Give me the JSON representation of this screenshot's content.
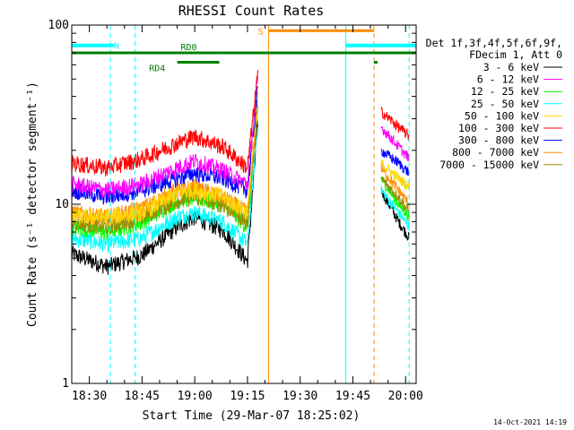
{
  "chart_data": {
    "type": "line",
    "title": "RHESSI Count Rates",
    "xlabel": "Start Time (29-Mar-07 18:25:02)",
    "ylabel": "Count Rate (s⁻¹ detector segment⁻¹)",
    "y_scale": "log",
    "ylim": [
      1,
      100
    ],
    "xlim": [
      "18:25",
      "20:03"
    ],
    "x_ticks": [
      "18:30",
      "18:45",
      "19:00",
      "19:15",
      "19:30",
      "19:45",
      "20:00"
    ],
    "y_ticks": [
      "1",
      "10",
      "100"
    ],
    "legend": {
      "placement": "outside-right",
      "header": [
        "Det 1f,3f,4f,5f,6f,9f,",
        "FDecim 1, Att 0"
      ]
    },
    "grid": false,
    "data_gap": [
      "19:22",
      "19:53"
    ],
    "series": [
      {
        "name": "3 - 6 keV",
        "color": "#000000",
        "x": [
          "18:25",
          "18:35",
          "18:45",
          "18:55",
          "19:00",
          "19:08",
          "19:15",
          "19:18",
          "19:53",
          "19:58",
          "20:01"
        ],
        "values": [
          5.3,
          4.5,
          5.2,
          7.5,
          8.5,
          7.2,
          4.8,
          30,
          12,
          8,
          6.5
        ]
      },
      {
        "name": "6 - 12 keV",
        "color": "#ff00ff",
        "x": [
          "18:25",
          "18:35",
          "18:45",
          "18:55",
          "19:00",
          "19:08",
          "19:15",
          "19:18",
          "19:53",
          "19:58",
          "20:01"
        ],
        "values": [
          13,
          12,
          13,
          16,
          17.5,
          15.5,
          13,
          52,
          27,
          21,
          18
        ]
      },
      {
        "name": "12 - 25 keV",
        "color": "#00ff00",
        "x": [
          "18:25",
          "18:35",
          "18:45",
          "18:55",
          "19:00",
          "19:08",
          "19:15",
          "19:18",
          "19:53",
          "19:58",
          "20:01"
        ],
        "values": [
          7.5,
          7,
          8,
          10.5,
          11,
          10,
          7.5,
          35,
          14,
          10,
          8.5
        ]
      },
      {
        "name": "25 - 50 keV",
        "color": "#00ffff",
        "x": [
          "18:25",
          "18:35",
          "18:45",
          "18:55",
          "19:00",
          "19:08",
          "19:15",
          "19:18",
          "19:53",
          "19:58",
          "20:01"
        ],
        "values": [
          6.5,
          6,
          6.5,
          8.5,
          9,
          8,
          6,
          30,
          12,
          9,
          7.5
        ]
      },
      {
        "name": "50 - 100 keV",
        "color": "#ffd700",
        "x": [
          "18:25",
          "18:35",
          "18:45",
          "18:55",
          "19:00",
          "19:08",
          "19:15",
          "19:18",
          "19:53",
          "19:58",
          "20:01"
        ],
        "values": [
          8.5,
          8.5,
          9,
          11.5,
          12,
          11,
          9,
          40,
          17,
          14,
          12.5
        ]
      },
      {
        "name": "100 - 300 keV",
        "color": "#ff0000",
        "x": [
          "18:25",
          "18:35",
          "18:45",
          "18:55",
          "19:00",
          "19:08",
          "19:15",
          "19:18",
          "19:53",
          "19:58",
          "20:01"
        ],
        "values": [
          17,
          16,
          18,
          22,
          24,
          21,
          16,
          55,
          33,
          27,
          24
        ]
      },
      {
        "name": "300 - 800 keV",
        "color": "#0000ff",
        "x": [
          "18:25",
          "18:35",
          "18:45",
          "18:55",
          "19:00",
          "19:08",
          "19:15",
          "19:18",
          "19:53",
          "19:58",
          "20:01"
        ],
        "values": [
          12,
          11,
          12,
          14,
          15,
          14,
          12,
          45,
          20,
          17,
          15
        ]
      },
      {
        "name": "800 - 7000 keV",
        "color": "#ff8c00",
        "x": [
          "18:25",
          "18:35",
          "18:45",
          "18:55",
          "19:00",
          "19:08",
          "19:15",
          "19:18",
          "19:53",
          "19:58",
          "20:01"
        ],
        "values": [
          9,
          8.5,
          9.5,
          12,
          12.5,
          11,
          9,
          38,
          16,
          12,
          10
        ]
      },
      {
        "name": "7000 - 15000 keV",
        "color": "#9a8a00",
        "x": [
          "18:25",
          "18:35",
          "18:45",
          "18:55",
          "19:00",
          "19:08",
          "19:15",
          "19:18",
          "19:53",
          "19:58",
          "20:01"
        ],
        "values": [
          8,
          7.5,
          8.5,
          10.5,
          11,
          10,
          8,
          34,
          14,
          11,
          9
        ]
      }
    ],
    "annotations": {
      "N": {
        "label": "N",
        "color": "#00ffff",
        "y": 77,
        "segments": [
          [
            "18:25",
            "18:37"
          ],
          [
            "19:43",
            "20:03"
          ]
        ],
        "lines": [
          "18:25",
          "18:36",
          "18:43",
          "19:43",
          "20:01"
        ]
      },
      "S": {
        "label": "S",
        "color": "#ff8c00",
        "y": 93,
        "segments": [
          [
            "19:21",
            "19:51"
          ]
        ],
        "lines": [
          "19:21",
          "19:51"
        ]
      },
      "RD0": {
        "label": "RD0",
        "color": "#008000",
        "y": 70,
        "segments": [
          [
            "18:25",
            "19:07"
          ],
          [
            "19:07",
            "20:03"
          ]
        ]
      },
      "RD4": {
        "label": "RD4",
        "color": "#008000",
        "y": 62,
        "segments": [
          [
            "18:55",
            "19:07"
          ],
          [
            "19:51",
            "19:52"
          ]
        ]
      }
    },
    "timestamp": "14-Oct-2021 14:19"
  }
}
